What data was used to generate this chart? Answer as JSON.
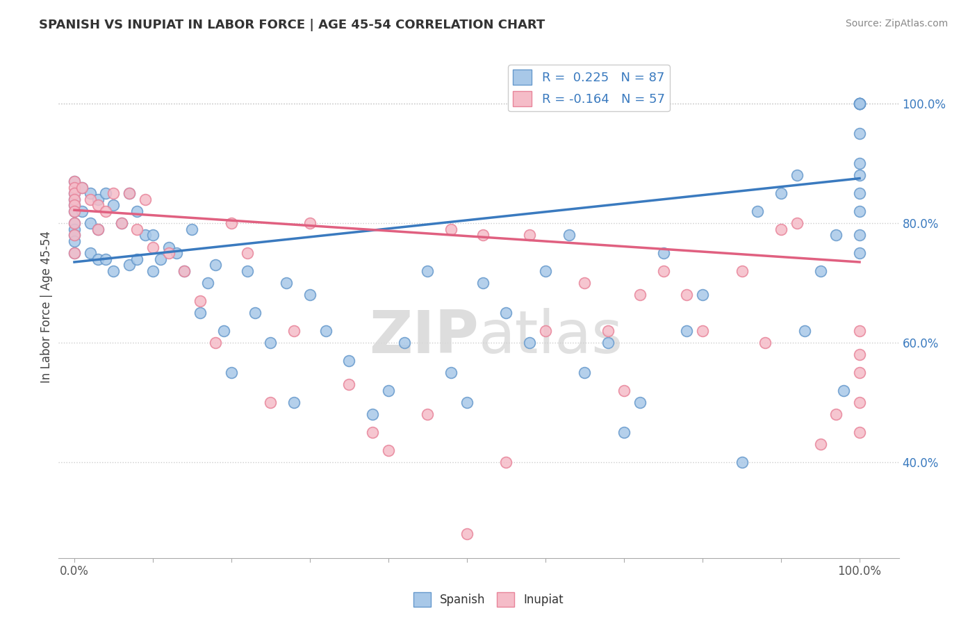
{
  "title": "SPANISH VS INUPIAT IN LABOR FORCE | AGE 45-54 CORRELATION CHART",
  "source": "Source: ZipAtlas.com",
  "ylabel": "In Labor Force | Age 45-54",
  "watermark": "ZIPatlas",
  "r_spanish": 0.225,
  "n_spanish": 87,
  "r_inupiat": -0.164,
  "n_inupiat": 57,
  "xlim": [
    -0.02,
    1.05
  ],
  "ylim": [
    0.24,
    1.08
  ],
  "yticks_right": [
    0.4,
    0.6,
    0.8,
    1.0
  ],
  "yticklabels_right": [
    "40.0%",
    "60.0%",
    "80.0%",
    "100.0%"
  ],
  "spanish_color": "#a8c8e8",
  "inupiat_color": "#f5bcc8",
  "spanish_edge": "#6699cc",
  "inupiat_edge": "#e8849a",
  "trend_spanish_color": "#3a7abf",
  "trend_inupiat_color": "#e06080",
  "legend_r_color": "#3a7abf",
  "background_color": "#ffffff",
  "trend_sp_x0": 0.0,
  "trend_sp_y0": 0.735,
  "trend_sp_x1": 1.0,
  "trend_sp_y1": 0.875,
  "trend_in_x0": 0.0,
  "trend_in_y0": 0.822,
  "trend_in_x1": 1.0,
  "trend_in_y1": 0.735,
  "sp_x": [
    0.0,
    0.0,
    0.0,
    0.0,
    0.0,
    0.0,
    0.0,
    0.0,
    0.0,
    0.0,
    0.01,
    0.01,
    0.02,
    0.02,
    0.02,
    0.03,
    0.03,
    0.03,
    0.04,
    0.04,
    0.05,
    0.05,
    0.06,
    0.07,
    0.07,
    0.08,
    0.08,
    0.09,
    0.1,
    0.1,
    0.11,
    0.12,
    0.13,
    0.14,
    0.15,
    0.16,
    0.17,
    0.18,
    0.19,
    0.2,
    0.22,
    0.23,
    0.25,
    0.27,
    0.28,
    0.3,
    0.32,
    0.35,
    0.38,
    0.4,
    0.42,
    0.45,
    0.48,
    0.5,
    0.52,
    0.55,
    0.58,
    0.6,
    0.63,
    0.65,
    0.68,
    0.7,
    0.72,
    0.75,
    0.78,
    0.8,
    0.85,
    0.87,
    0.9,
    0.92,
    0.93,
    0.95,
    0.97,
    0.98,
    1.0,
    1.0,
    1.0,
    1.0,
    1.0,
    1.0,
    1.0,
    1.0,
    1.0,
    1.0,
    1.0,
    1.0,
    1.0
  ],
  "sp_y": [
    0.87,
    0.85,
    0.84,
    0.83,
    0.82,
    0.8,
    0.79,
    0.78,
    0.77,
    0.75,
    0.86,
    0.82,
    0.85,
    0.8,
    0.75,
    0.84,
    0.79,
    0.74,
    0.85,
    0.74,
    0.83,
    0.72,
    0.8,
    0.85,
    0.73,
    0.82,
    0.74,
    0.78,
    0.78,
    0.72,
    0.74,
    0.76,
    0.75,
    0.72,
    0.79,
    0.65,
    0.7,
    0.73,
    0.62,
    0.55,
    0.72,
    0.65,
    0.6,
    0.7,
    0.5,
    0.68,
    0.62,
    0.57,
    0.48,
    0.52,
    0.6,
    0.72,
    0.55,
    0.5,
    0.7,
    0.65,
    0.6,
    0.72,
    0.78,
    0.55,
    0.6,
    0.45,
    0.5,
    0.75,
    0.62,
    0.68,
    0.4,
    0.82,
    0.85,
    0.88,
    0.62,
    0.72,
    0.78,
    0.52,
    1.0,
    1.0,
    1.0,
    1.0,
    1.0,
    1.0,
    0.95,
    0.9,
    0.88,
    0.85,
    0.82,
    0.78,
    0.75
  ],
  "in_x": [
    0.0,
    0.0,
    0.0,
    0.0,
    0.0,
    0.0,
    0.0,
    0.0,
    0.0,
    0.01,
    0.02,
    0.03,
    0.03,
    0.04,
    0.05,
    0.06,
    0.07,
    0.08,
    0.09,
    0.1,
    0.12,
    0.14,
    0.16,
    0.18,
    0.2,
    0.22,
    0.25,
    0.28,
    0.3,
    0.35,
    0.38,
    0.4,
    0.45,
    0.48,
    0.5,
    0.52,
    0.55,
    0.58,
    0.6,
    0.65,
    0.68,
    0.7,
    0.72,
    0.75,
    0.78,
    0.8,
    0.85,
    0.88,
    0.9,
    0.92,
    0.95,
    0.97,
    1.0,
    1.0,
    1.0,
    1.0,
    1.0
  ],
  "in_y": [
    0.87,
    0.86,
    0.85,
    0.84,
    0.83,
    0.82,
    0.8,
    0.78,
    0.75,
    0.86,
    0.84,
    0.83,
    0.79,
    0.82,
    0.85,
    0.8,
    0.85,
    0.79,
    0.84,
    0.76,
    0.75,
    0.72,
    0.67,
    0.6,
    0.8,
    0.75,
    0.5,
    0.62,
    0.8,
    0.53,
    0.45,
    0.42,
    0.48,
    0.79,
    0.28,
    0.78,
    0.4,
    0.78,
    0.62,
    0.7,
    0.62,
    0.52,
    0.68,
    0.72,
    0.68,
    0.62,
    0.72,
    0.6,
    0.79,
    0.8,
    0.43,
    0.48,
    0.62,
    0.58,
    0.55,
    0.5,
    0.45
  ]
}
